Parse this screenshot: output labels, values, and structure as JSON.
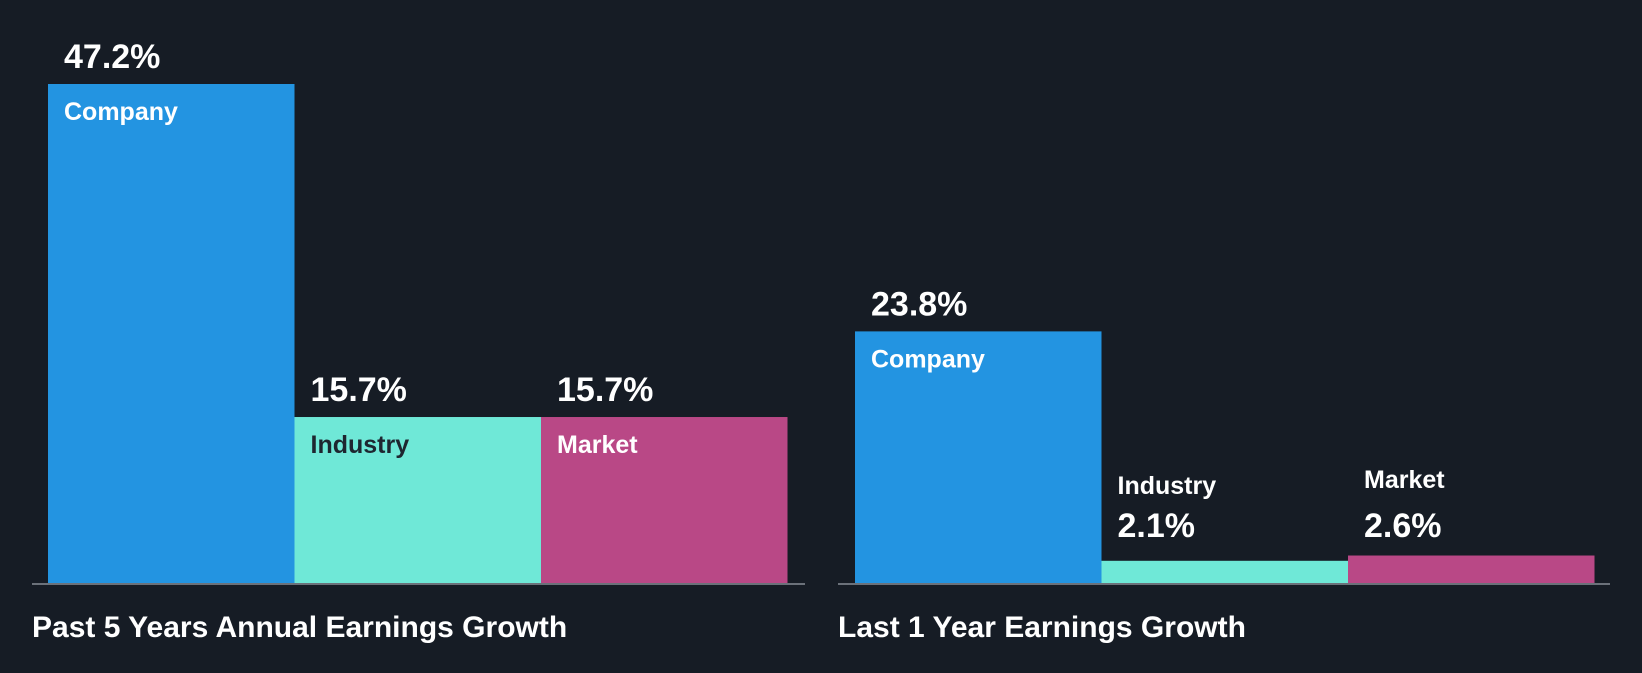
{
  "colors": {
    "background": "#161c25",
    "axis": "#6b717a",
    "text": "#ffffff",
    "text_dark": "#1e2630",
    "company": "#2394e1",
    "industry": "#6fe8d7",
    "market": "#b94886"
  },
  "chart_data": [
    {
      "type": "bar",
      "title": "Past 5 Years Annual Earnings Growth",
      "categories": [
        "Company",
        "Industry",
        "Market"
      ],
      "values": [
        47.2,
        15.7,
        15.7
      ],
      "value_labels": [
        "47.2%",
        "15.7%",
        "15.7%"
      ],
      "ylim": [
        0,
        47.2
      ],
      "grid": false,
      "legend": "none"
    },
    {
      "type": "bar",
      "title": "Last 1 Year Earnings Growth",
      "categories": [
        "Company",
        "Industry",
        "Market"
      ],
      "values": [
        23.8,
        2.1,
        2.6
      ],
      "value_labels": [
        "23.8%",
        "2.1%",
        "2.6%"
      ],
      "ylim": [
        0,
        47.2
      ],
      "grid": false,
      "legend": "none"
    }
  ]
}
